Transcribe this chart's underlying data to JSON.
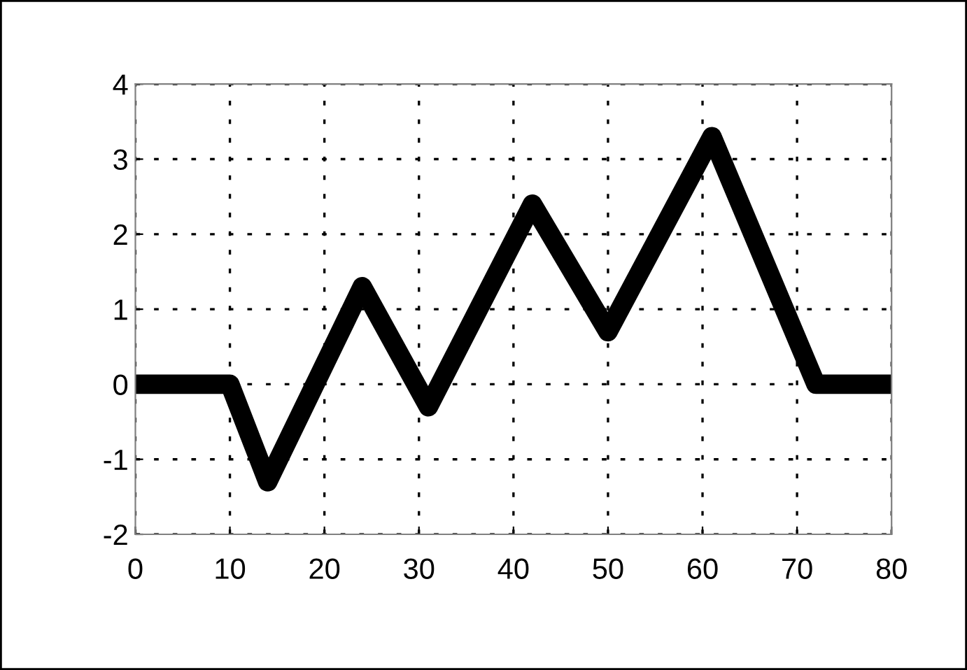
{
  "chart_data": {
    "type": "line",
    "x": [
      0,
      10,
      14,
      24,
      31,
      42,
      50,
      61,
      72,
      80
    ],
    "series": [
      {
        "color": "#000000",
        "values": [
          0,
          0,
          -1.3,
          1.3,
          -0.3,
          2.4,
          0.7,
          3.3,
          0,
          0
        ]
      }
    ],
    "xlim": [
      0,
      80
    ],
    "xticks": [
      0,
      10,
      20,
      30,
      40,
      50,
      60,
      70,
      80
    ],
    "ylim": [
      -2,
      4
    ],
    "yticks": [
      -2,
      -1,
      0,
      1,
      2,
      3,
      4
    ],
    "grid": true,
    "line_style": "solid"
  }
}
